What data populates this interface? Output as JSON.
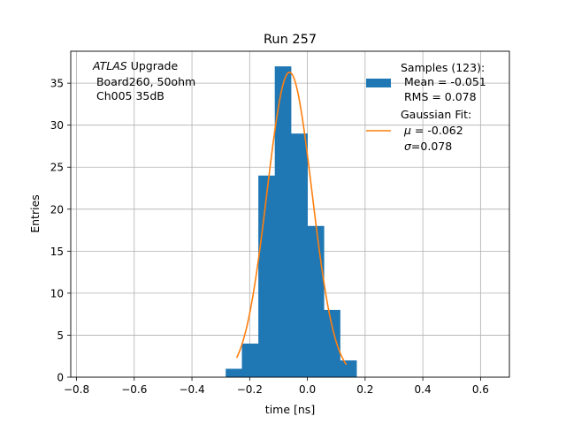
{
  "chart_data": {
    "type": "bar",
    "title": "Run 257",
    "xlabel": "time [ns]",
    "ylabel": "Entries",
    "xlim": [
      -0.82,
      0.7
    ],
    "ylim": [
      0,
      38.8
    ],
    "grid": true,
    "legend_placement": "top-right",
    "x_ticks": [
      -0.8,
      -0.6,
      -0.4,
      -0.2,
      0.0,
      0.2,
      0.4,
      0.6
    ],
    "x_tick_labels": [
      "−0.8",
      "−0.6",
      "−0.4",
      "−0.2",
      "0.0",
      "0.2",
      "0.4",
      "0.6"
    ],
    "y_ticks": [
      0,
      5,
      10,
      15,
      20,
      25,
      30,
      35
    ],
    "y_tick_labels": [
      "0",
      "5",
      "10",
      "15",
      "20",
      "25",
      "30",
      "35"
    ],
    "bin_edges": [
      -0.283,
      -0.227,
      -0.17,
      -0.113,
      -0.057,
      0.0,
      0.057,
      0.113,
      0.17
    ],
    "counts": [
      1,
      4,
      24,
      37,
      29,
      18,
      8,
      2
    ],
    "fit_curve": {
      "amplitude": 36.3,
      "mu": -0.062,
      "sigma": 0.078,
      "x_start": -0.245,
      "x_end": 0.135
    },
    "annotation": {
      "italic": "ATLAS",
      "rest": " Upgrade",
      "line2": " Board260, 50ohm",
      "line3": " Ch005 35dB"
    },
    "legend": {
      "samples_line1": "Samples (123):",
      "samples_line2": " Mean = -0.051",
      "samples_line3": " RMS = 0.078",
      "fit_line1": "Gaussian Fit:",
      "fit_mu_sym": "μ",
      "fit_mu_val": " = -0.062",
      "fit_sigma_sym": "σ",
      "fit_sigma_val": "=0.078"
    },
    "colors": {
      "bars": "#1f77b4",
      "fit": "#ff7f0e",
      "grid": "#b0b0b0"
    }
  }
}
